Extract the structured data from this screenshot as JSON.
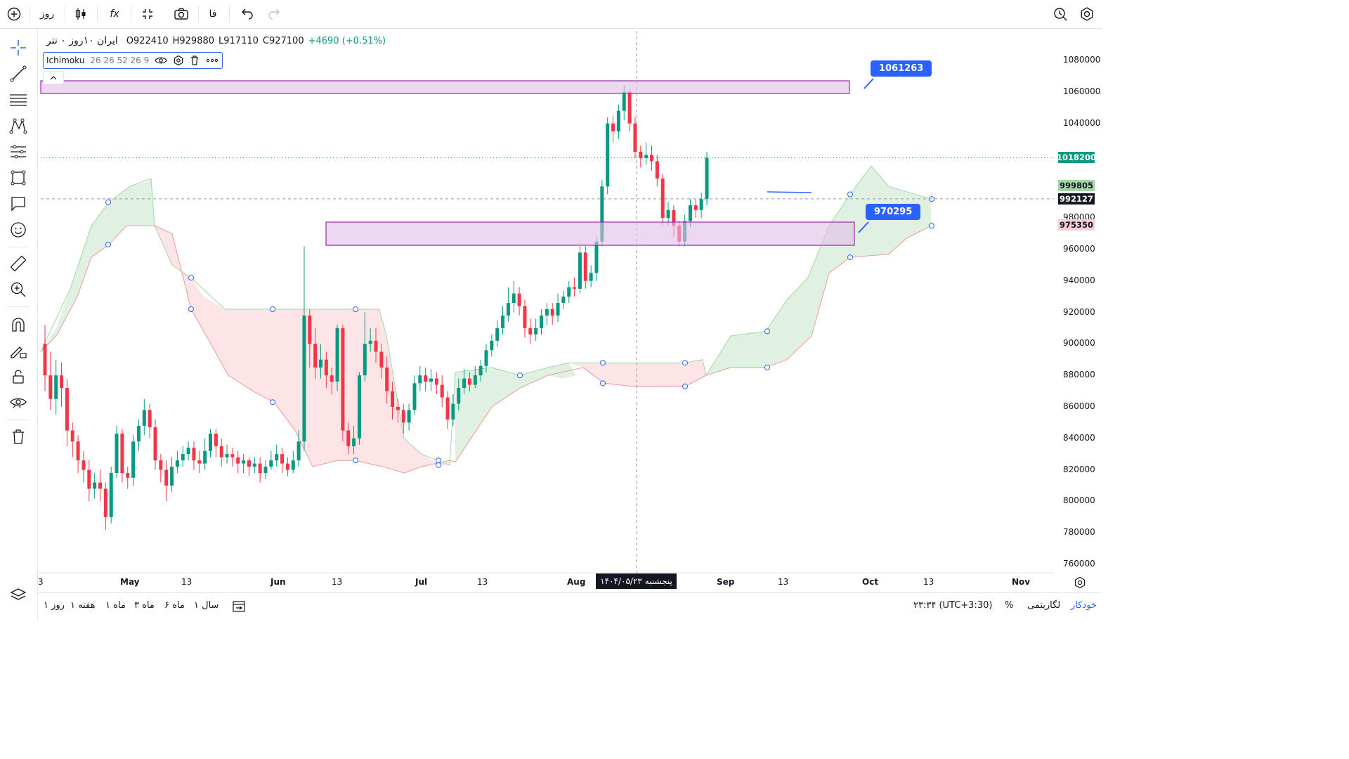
{
  "topbar": {
    "add_symbol": "+",
    "interval": "روز",
    "indicators_label": "fx",
    "language": "فا",
    "undo": "↶",
    "redo": "↷"
  },
  "symbol": {
    "name": "ایران ۱۰روز ۰ تتر",
    "open": "O922410",
    "high": "H929880",
    "low": "L917110",
    "close": "C927100",
    "change": "+4690 (+0.51%)"
  },
  "indicator": {
    "name": "Ichimoku",
    "params": "26 26 52 26 9"
  },
  "price_axis": {
    "ticks": [
      "1080000",
      "1060000",
      "1040000",
      "1018200",
      "999805",
      "992127",
      "980000",
      "975350",
      "960000",
      "940000",
      "920000",
      "900000",
      "880000",
      "860000",
      "840000",
      "820000",
      "800000",
      "780000",
      "760000"
    ],
    "current_price": "1018200",
    "crosshair_price": "992127",
    "span_a": "999805",
    "span_b": "975350"
  },
  "time_axis": {
    "ticks": [
      "3",
      "May",
      "13",
      "Jun",
      "13",
      "Jul",
      "13",
      "Aug",
      "Sep",
      "13",
      "Oct",
      "13",
      "Nov"
    ],
    "crosshair_date": "پنجشنبه ۱۴۰۴/۰۵/۲۳"
  },
  "annotations": {
    "upper_zone_label": "1061263",
    "lower_zone_label": "970295"
  },
  "bottombar": {
    "ranges": [
      "۱ روز",
      "۱ هفته",
      "۱ ماه",
      "۳ ماه",
      "۶ ماه",
      "۱ سال"
    ],
    "time": "۲۳:۳۴ (UTC+3:30)",
    "percent": "%",
    "log": "لگاریتمی",
    "auto": "خودکار"
  },
  "colors": {
    "up": "#089981",
    "down": "#f23645",
    "cloud_up": "#c8e6c9",
    "cloud_down": "#fbd0d3",
    "zone": "#9c27b0",
    "accent": "#2962ff"
  },
  "chart_data": {
    "type": "candlestick",
    "ylim": [
      755000,
      1090000
    ],
    "candles": [
      [
        900000,
        880000,
        912000,
        870000
      ],
      [
        880000,
        865000,
        895000,
        858000
      ],
      [
        865000,
        880000,
        890000,
        855000
      ],
      [
        880000,
        872000,
        888000,
        860000
      ],
      [
        872000,
        845000,
        878000,
        835000
      ],
      [
        845000,
        838000,
        850000,
        828000
      ],
      [
        838000,
        826000,
        842000,
        818000
      ],
      [
        826000,
        820000,
        832000,
        812000
      ],
      [
        820000,
        808000,
        826000,
        800000
      ],
      [
        808000,
        812000,
        818000,
        802000
      ],
      [
        812000,
        808000,
        820000,
        800000
      ],
      [
        808000,
        790000,
        812000,
        782000
      ],
      [
        790000,
        818000,
        822000,
        786000
      ],
      [
        818000,
        843000,
        848000,
        815000
      ],
      [
        843000,
        818000,
        846000,
        812000
      ],
      [
        818000,
        815000,
        822000,
        808000
      ],
      [
        815000,
        838000,
        842000,
        810000
      ],
      [
        838000,
        848000,
        852000,
        832000
      ],
      [
        848000,
        858000,
        865000,
        842000
      ],
      [
        858000,
        847000,
        862000,
        840000
      ],
      [
        847000,
        826000,
        852000,
        820000
      ],
      [
        826000,
        820000,
        830000,
        812000
      ],
      [
        820000,
        810000,
        826000,
        800000
      ],
      [
        810000,
        822000,
        828000,
        806000
      ],
      [
        822000,
        826000,
        832000,
        818000
      ],
      [
        826000,
        830000,
        835000,
        822000
      ],
      [
        830000,
        834000,
        838000,
        826000
      ],
      [
        834000,
        826000,
        838000,
        820000
      ],
      [
        826000,
        824000,
        832000,
        818000
      ],
      [
        824000,
        832000,
        840000,
        820000
      ],
      [
        832000,
        843000,
        846000,
        828000
      ],
      [
        843000,
        835000,
        846000,
        828000
      ],
      [
        835000,
        828000,
        840000,
        822000
      ],
      [
        828000,
        830000,
        836000,
        824000
      ],
      [
        830000,
        828000,
        834000,
        822000
      ],
      [
        828000,
        824000,
        832000,
        818000
      ],
      [
        824000,
        826000,
        830000,
        818000
      ],
      [
        826000,
        822000,
        828000,
        816000
      ],
      [
        822000,
        824000,
        828000,
        818000
      ],
      [
        824000,
        818000,
        828000,
        812000
      ],
      [
        818000,
        822000,
        826000,
        814000
      ],
      [
        822000,
        826000,
        832000,
        820000
      ],
      [
        826000,
        830000,
        836000,
        822000
      ],
      [
        830000,
        824000,
        834000,
        818000
      ],
      [
        824000,
        820000,
        828000,
        816000
      ],
      [
        820000,
        826000,
        832000,
        818000
      ],
      [
        826000,
        838000,
        845000,
        822000
      ],
      [
        838000,
        918000,
        962000,
        832000
      ],
      [
        918000,
        900000,
        922000,
        885000
      ],
      [
        900000,
        885000,
        910000,
        878000
      ],
      [
        885000,
        890000,
        900000,
        878000
      ],
      [
        890000,
        880000,
        895000,
        872000
      ],
      [
        880000,
        876000,
        885000,
        868000
      ],
      [
        876000,
        910000,
        912000,
        870000
      ],
      [
        910000,
        845000,
        912000,
        838000
      ],
      [
        845000,
        835000,
        850000,
        830000
      ],
      [
        835000,
        840000,
        848000,
        830000
      ],
      [
        840000,
        880000,
        882000,
        836000
      ],
      [
        880000,
        900000,
        920000,
        876000
      ],
      [
        900000,
        902000,
        910000,
        895000
      ],
      [
        902000,
        895000,
        910000,
        888000
      ],
      [
        895000,
        885000,
        900000,
        878000
      ],
      [
        885000,
        870000,
        892000,
        862000
      ],
      [
        870000,
        860000,
        876000,
        852000
      ],
      [
        860000,
        858000,
        865000,
        850000
      ],
      [
        858000,
        850000,
        862000,
        843000
      ],
      [
        850000,
        858000,
        862000,
        845000
      ],
      [
        858000,
        875000,
        880000,
        855000
      ],
      [
        875000,
        880000,
        886000,
        870000
      ],
      [
        880000,
        876000,
        885000,
        870000
      ],
      [
        876000,
        878000,
        884000,
        870000
      ],
      [
        878000,
        874000,
        882000,
        868000
      ],
      [
        874000,
        866000,
        880000,
        860000
      ],
      [
        866000,
        852000,
        870000,
        846000
      ],
      [
        852000,
        862000,
        868000,
        848000
      ],
      [
        862000,
        872000,
        878000,
        858000
      ],
      [
        872000,
        878000,
        884000,
        868000
      ],
      [
        878000,
        874000,
        882000,
        870000
      ],
      [
        874000,
        880000,
        886000,
        872000
      ],
      [
        880000,
        886000,
        890000,
        876000
      ],
      [
        886000,
        896000,
        900000,
        882000
      ],
      [
        896000,
        902000,
        906000,
        892000
      ],
      [
        902000,
        910000,
        915000,
        898000
      ],
      [
        910000,
        918000,
        924000,
        906000
      ],
      [
        918000,
        926000,
        936000,
        914000
      ],
      [
        926000,
        932000,
        940000,
        920000
      ],
      [
        932000,
        924000,
        936000,
        918000
      ],
      [
        924000,
        910000,
        928000,
        904000
      ],
      [
        910000,
        906000,
        916000,
        900000
      ],
      [
        906000,
        910000,
        916000,
        902000
      ],
      [
        910000,
        918000,
        922000,
        906000
      ],
      [
        918000,
        922000,
        926000,
        912000
      ],
      [
        922000,
        918000,
        926000,
        912000
      ],
      [
        918000,
        926000,
        932000,
        914000
      ],
      [
        926000,
        930000,
        934000,
        922000
      ],
      [
        930000,
        936000,
        940000,
        926000
      ],
      [
        936000,
        935000,
        942000,
        930000
      ],
      [
        935000,
        958000,
        962000,
        932000
      ],
      [
        958000,
        940000,
        962000,
        935000
      ],
      [
        940000,
        945000,
        950000,
        936000
      ],
      [
        945000,
        965000,
        968000,
        940000
      ],
      [
        965000,
        1000000,
        1004000,
        962000
      ],
      [
        1000000,
        1040000,
        1044000,
        995000
      ],
      [
        1040000,
        1035000,
        1045000,
        1028000
      ],
      [
        1035000,
        1048000,
        1052000,
        1030000
      ],
      [
        1048000,
        1060000,
        1064000,
        1042000
      ],
      [
        1060000,
        1040000,
        1062000,
        1035000
      ],
      [
        1040000,
        1022000,
        1044000,
        1018000
      ],
      [
        1022000,
        1018000,
        1026000,
        1012000
      ],
      [
        1018000,
        1020000,
        1028000,
        1014000
      ],
      [
        1020000,
        1016000,
        1026000,
        1010000
      ],
      [
        1016000,
        1005000,
        1020000,
        1000000
      ],
      [
        1005000,
        980000,
        1008000,
        975000
      ],
      [
        980000,
        985000,
        990000,
        975000
      ],
      [
        985000,
        975000,
        988000,
        968000
      ],
      [
        975000,
        965000,
        978000,
        962000
      ],
      [
        965000,
        978000,
        982000,
        962000
      ],
      [
        978000,
        988000,
        992000,
        974000
      ],
      [
        988000,
        985000,
        992000,
        980000
      ],
      [
        985000,
        992000,
        996000,
        980000
      ],
      [
        992000,
        1018200,
        1022000,
        988000
      ]
    ]
  }
}
